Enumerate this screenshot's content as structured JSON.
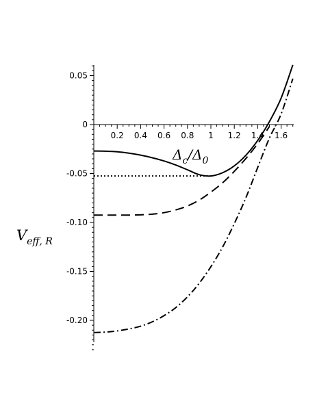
{
  "chart_data": {
    "type": "line",
    "title": "",
    "xlabel": {
      "main": "Δ",
      "sub": "c",
      "slash": "/",
      "main2": "Δ",
      "sub2": "0"
    },
    "ylabel": {
      "main": "V",
      "sub": "eff, R"
    },
    "xlim": [
      0,
      1.7
    ],
    "ylim": [
      -0.23,
      0.063
    ],
    "x_ticks": [
      0.2,
      0.4,
      0.6,
      0.8,
      1,
      1.2,
      1.4,
      1.6
    ],
    "x_tick_labels": [
      "0.2",
      "0.4",
      "0.6",
      "0.8",
      "1",
      "1.2",
      "1.4",
      "1.6"
    ],
    "y_ticks": [
      0.05,
      0,
      -0.05,
      -0.1,
      -0.15,
      -0.2
    ],
    "y_tick_labels": [
      "0.05",
      "0",
      "-0.05",
      "-0.10",
      "-0.15",
      "-0.20"
    ],
    "grid": false,
    "legend": "none",
    "series": [
      {
        "style": "solid",
        "color": "#000000",
        "x": [
          0,
          0.1,
          0.2,
          0.3,
          0.4,
          0.5,
          0.6,
          0.7,
          0.8,
          0.9,
          1.0,
          1.1,
          1.2,
          1.3,
          1.4,
          1.5,
          1.6,
          1.7
        ],
        "y": [
          -0.027,
          -0.0272,
          -0.0278,
          -0.0292,
          -0.0312,
          -0.0339,
          -0.0372,
          -0.0413,
          -0.0462,
          -0.0512,
          -0.0525,
          -0.0492,
          -0.0422,
          -0.0312,
          -0.0162,
          0.003,
          0.027,
          0.061
        ]
      },
      {
        "style": "dotted",
        "color": "#000000",
        "x": [
          0,
          1.0
        ],
        "y": [
          -0.0525,
          -0.0525
        ]
      },
      {
        "style": "dashed",
        "color": "#000000",
        "x": [
          0,
          0.1,
          0.2,
          0.3,
          0.4,
          0.5,
          0.6,
          0.7,
          0.8,
          0.9,
          1.0,
          1.1,
          1.2,
          1.3,
          1.4,
          1.5
        ],
        "y": [
          -0.0925,
          -0.0925,
          -0.0925,
          -0.0925,
          -0.0922,
          -0.0915,
          -0.09,
          -0.0872,
          -0.0832,
          -0.0772,
          -0.069,
          -0.0595,
          -0.0478,
          -0.0345,
          -0.0195,
          -0.002
        ]
      },
      {
        "style": "dashdot",
        "color": "#000000",
        "x": [
          0,
          0.1,
          0.2,
          0.3,
          0.4,
          0.5,
          0.6,
          0.7,
          0.8,
          0.9,
          1.0,
          1.1,
          1.2,
          1.3,
          1.4,
          1.5,
          1.6,
          1.7
        ],
        "y": [
          -0.2125,
          -0.212,
          -0.2108,
          -0.2088,
          -0.206,
          -0.2015,
          -0.1952,
          -0.187,
          -0.176,
          -0.1622,
          -0.1452,
          -0.1252,
          -0.1012,
          -0.0745,
          -0.0438,
          -0.0138,
          0.0108,
          0.047
        ]
      }
    ]
  }
}
